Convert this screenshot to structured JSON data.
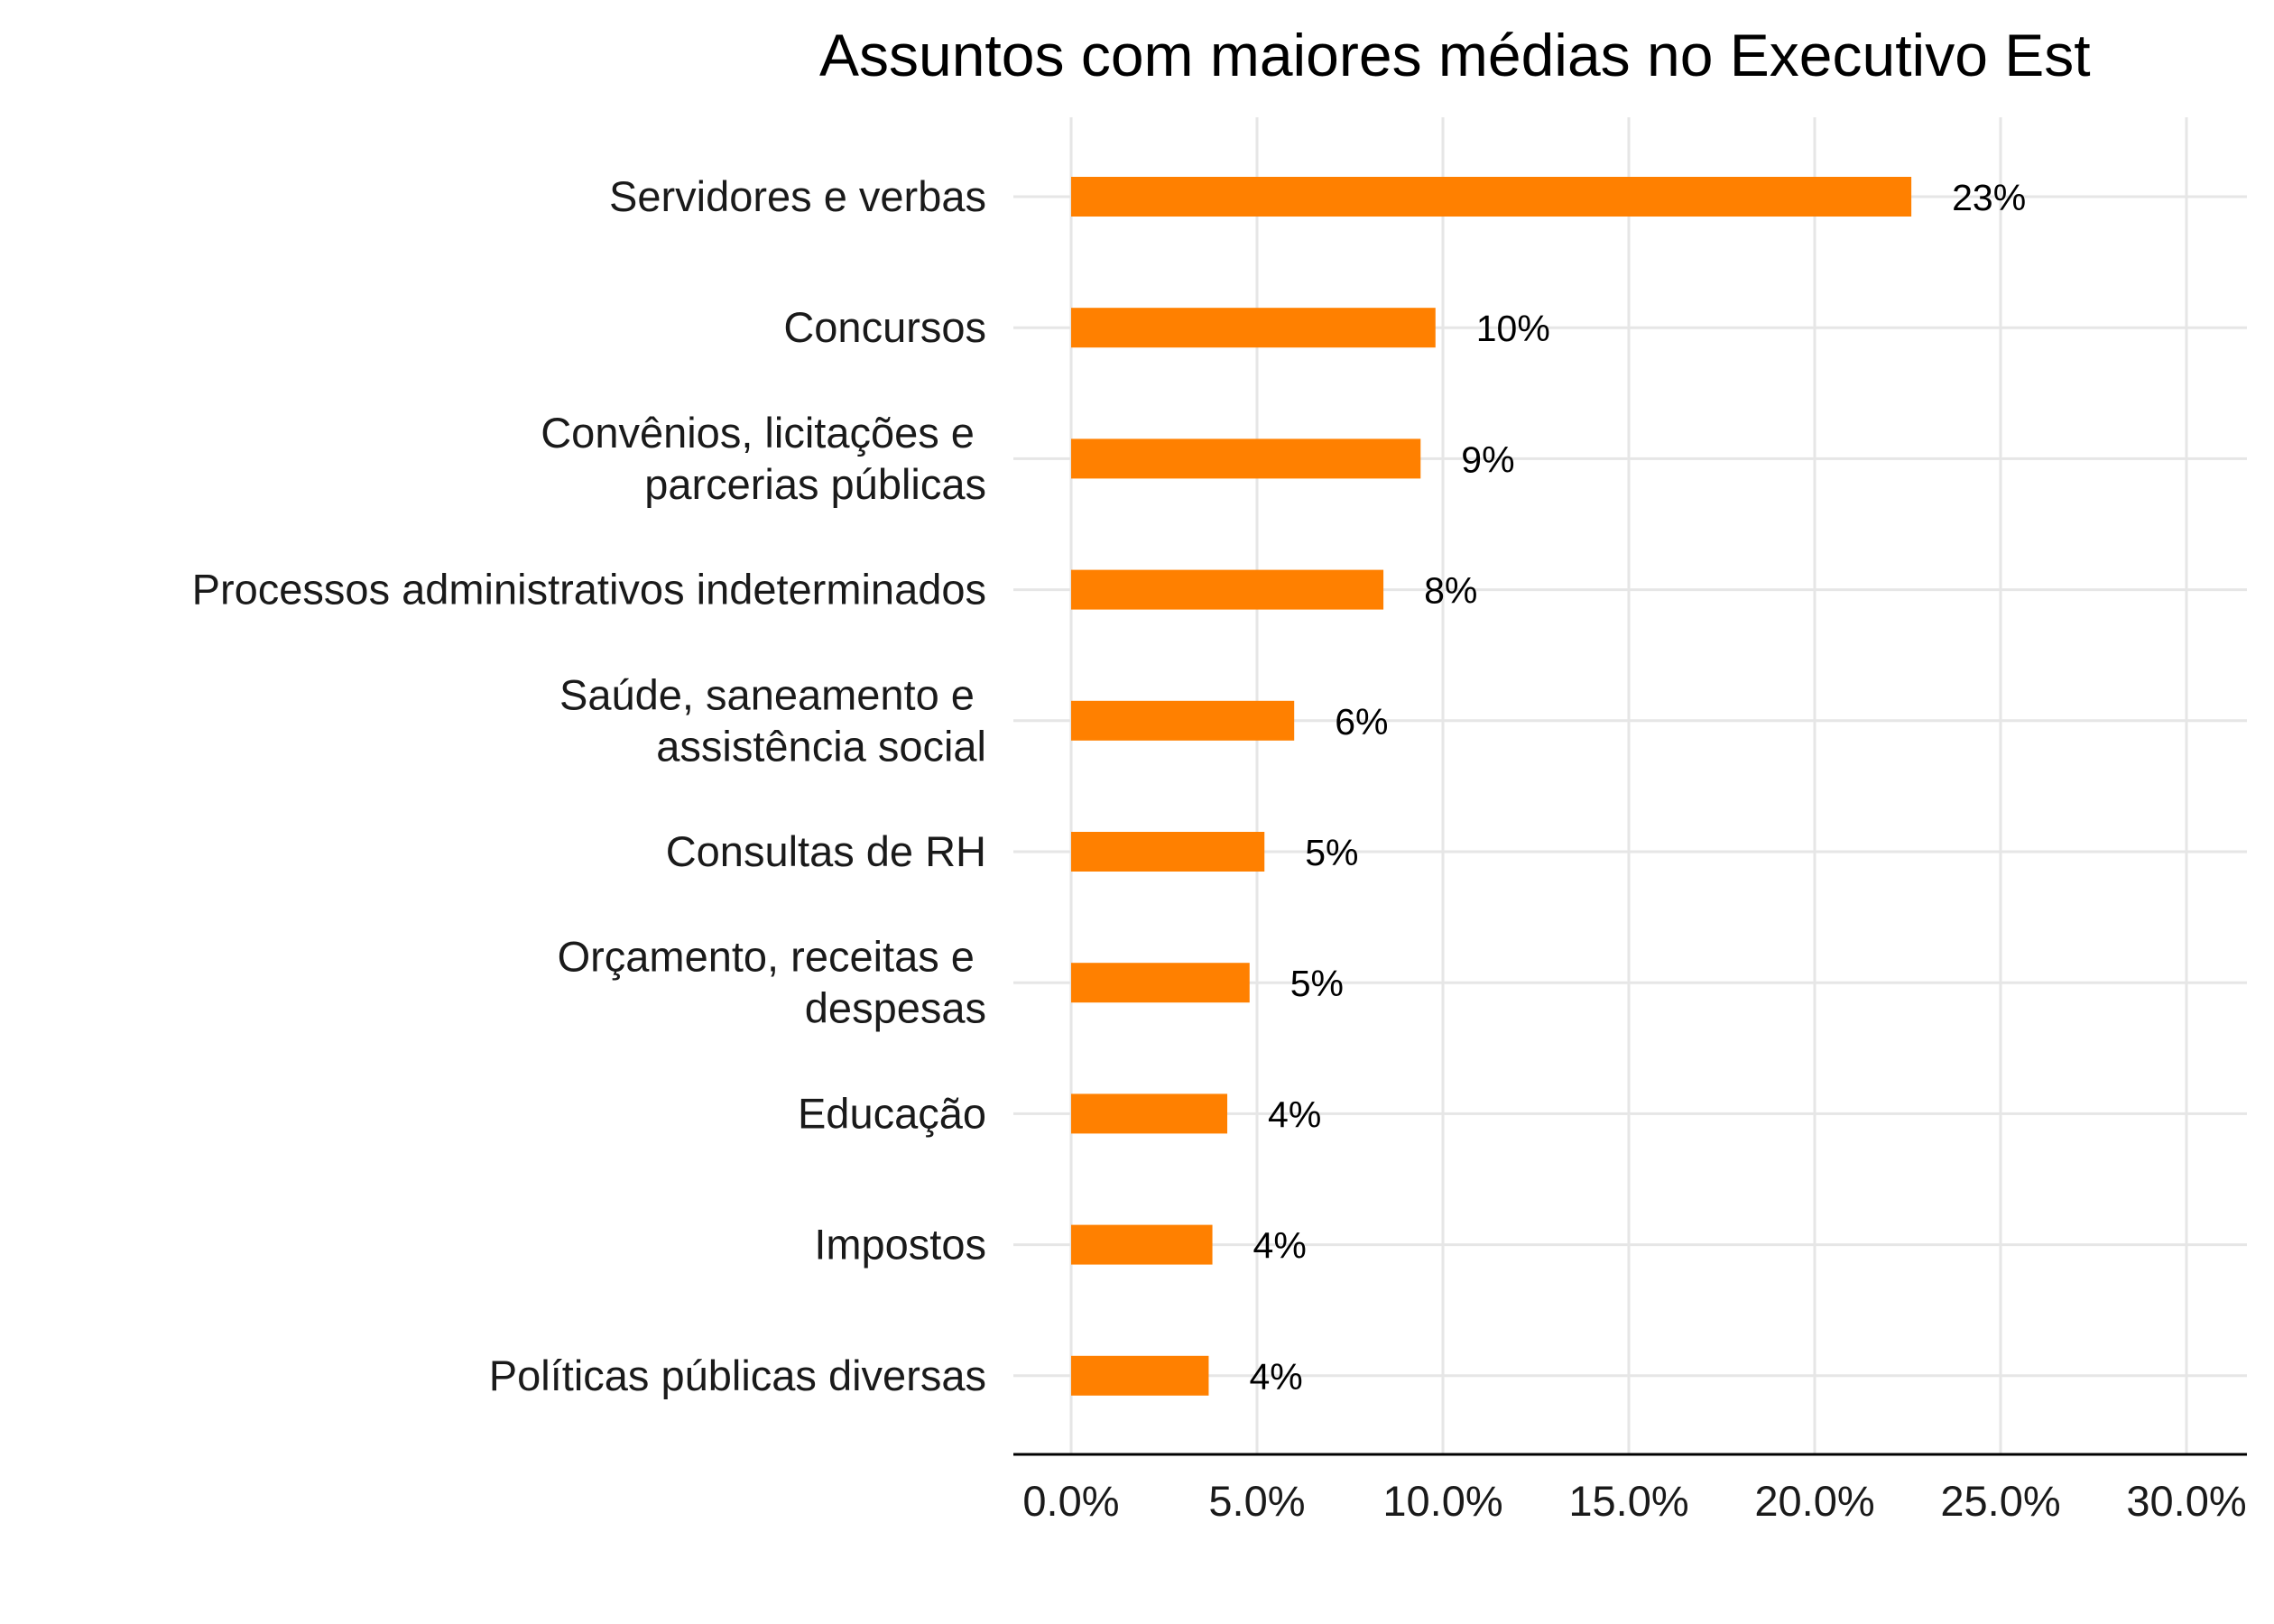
{
  "chart_data": {
    "type": "bar",
    "orientation": "horizontal",
    "title": "Assuntos com maiores médias no Executivo Est",
    "xlabel": "",
    "ylabel": "",
    "xlim": [
      0,
      30
    ],
    "x_ticks": [
      "0.0%",
      "5.0%",
      "10.0%",
      "15.0%",
      "20.0%",
      "25.0%",
      "30.0%"
    ],
    "x_tick_values": [
      0,
      5,
      10,
      15,
      20,
      25,
      30
    ],
    "grid": true,
    "bar_color": "#ff8000",
    "categories": [
      [
        "Servidores e verbas"
      ],
      [
        "Concursos"
      ],
      [
        "Convênios, licitações e ",
        "parcerias públicas"
      ],
      [
        "Processos administrativos indeterminados"
      ],
      [
        "Saúde, saneamento e ",
        "assistência social"
      ],
      [
        "Consultas de RH"
      ],
      [
        "Orçamento, receitas e ",
        "despesas"
      ],
      [
        "Educação"
      ],
      [
        "Impostos"
      ],
      [
        "Políticas públicas diversas"
      ]
    ],
    "values": [
      22.6,
      9.8,
      9.4,
      8.4,
      6.0,
      5.2,
      4.8,
      4.2,
      3.8,
      3.7
    ],
    "data_labels": [
      "23%",
      "10%",
      "9%",
      "8%",
      "6%",
      "5%",
      "5%",
      "4%",
      "4%",
      "4%"
    ]
  }
}
